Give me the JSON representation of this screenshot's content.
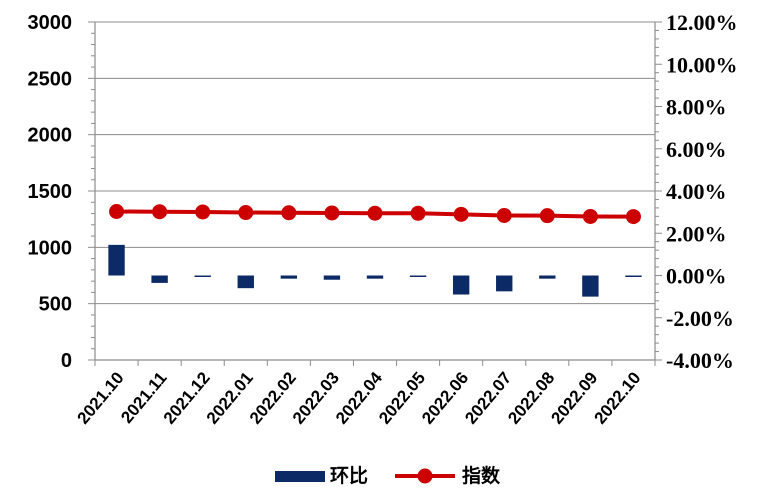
{
  "chart_data": {
    "type": "bar+line",
    "categories": [
      "2021.10",
      "2021.11",
      "2021.12",
      "2022.01",
      "2022.02",
      "2022.03",
      "2022.04",
      "2022.05",
      "2022.06",
      "2022.07",
      "2022.08",
      "2022.09",
      "2022.10"
    ],
    "series": [
      {
        "name": "环比",
        "type": "bar",
        "axis": "right",
        "values": [
          1.45,
          -0.35,
          -0.02,
          -0.6,
          -0.15,
          -0.2,
          -0.15,
          -0.05,
          -0.9,
          -0.75,
          -0.15,
          -1.0,
          -0.05
        ],
        "color": "#0b2a66"
      },
      {
        "name": "指数",
        "type": "line",
        "axis": "left",
        "values": [
          1318,
          1316,
          1314,
          1309,
          1307,
          1305,
          1303,
          1302,
          1293,
          1283,
          1281,
          1274,
          1273
        ],
        "color": "#cc0000"
      }
    ],
    "y_left": {
      "range": [
        0,
        3000
      ],
      "ticks": [
        "0",
        "500",
        "1000",
        "1500",
        "2000",
        "2500",
        "3000"
      ]
    },
    "y_right": {
      "range": [
        -4,
        12
      ],
      "ticks": [
        "-4.00%",
        "-2.00%",
        "0.00%",
        "2.00%",
        "4.00%",
        "6.00%",
        "8.00%",
        "10.00%",
        "12.00%"
      ]
    },
    "grid": "horizontal",
    "legend_position": "bottom"
  }
}
